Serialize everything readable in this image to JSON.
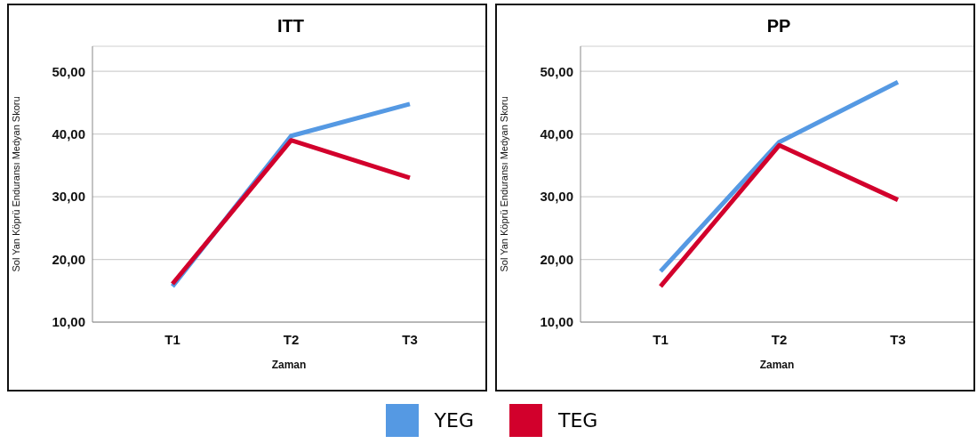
{
  "chart_data": [
    {
      "type": "line",
      "title": "ITT",
      "xlabel": "Zaman",
      "ylabel": "Sol Yan Köprü Enduransı Medyan Skoru",
      "categories": [
        "T1",
        "T2",
        "T3"
      ],
      "series": [
        {
          "name": "YEG",
          "color": "#5599e3",
          "values": [
            15.7,
            39.7,
            44.8
          ]
        },
        {
          "name": "TEG",
          "color": "#d2002c",
          "values": [
            16.1,
            39.0,
            33.0
          ]
        }
      ],
      "ylim": [
        10,
        54
      ],
      "yticks": [
        {
          "value": 10,
          "label": "10,00"
        },
        {
          "value": 20,
          "label": "20,00"
        },
        {
          "value": 30,
          "label": "30,00"
        },
        {
          "value": 40,
          "label": "40,00"
        },
        {
          "value": 50,
          "label": "50,00"
        }
      ],
      "grid": "y",
      "legend": "bottom",
      "marker": "none",
      "line_style": "solid"
    },
    {
      "type": "line",
      "title": "PP",
      "xlabel": "Zaman",
      "ylabel": "Sol Yan Köprü Enduransı Medyan Skoru",
      "categories": [
        "T1",
        "T2",
        "T3"
      ],
      "series": [
        {
          "name": "YEG",
          "color": "#5599e3",
          "values": [
            18.1,
            38.7,
            48.3
          ]
        },
        {
          "name": "TEG",
          "color": "#d2002c",
          "values": [
            15.7,
            38.2,
            29.5
          ]
        }
      ],
      "ylim": [
        10,
        54
      ],
      "yticks": [
        {
          "value": 10,
          "label": "10,00"
        },
        {
          "value": 20,
          "label": "20,00"
        },
        {
          "value": 30,
          "label": "30,00"
        },
        {
          "value": 40,
          "label": "40,00"
        },
        {
          "value": 50,
          "label": "50,00"
        }
      ],
      "grid": "y",
      "marker": "none",
      "line_style": "solid"
    }
  ]
}
